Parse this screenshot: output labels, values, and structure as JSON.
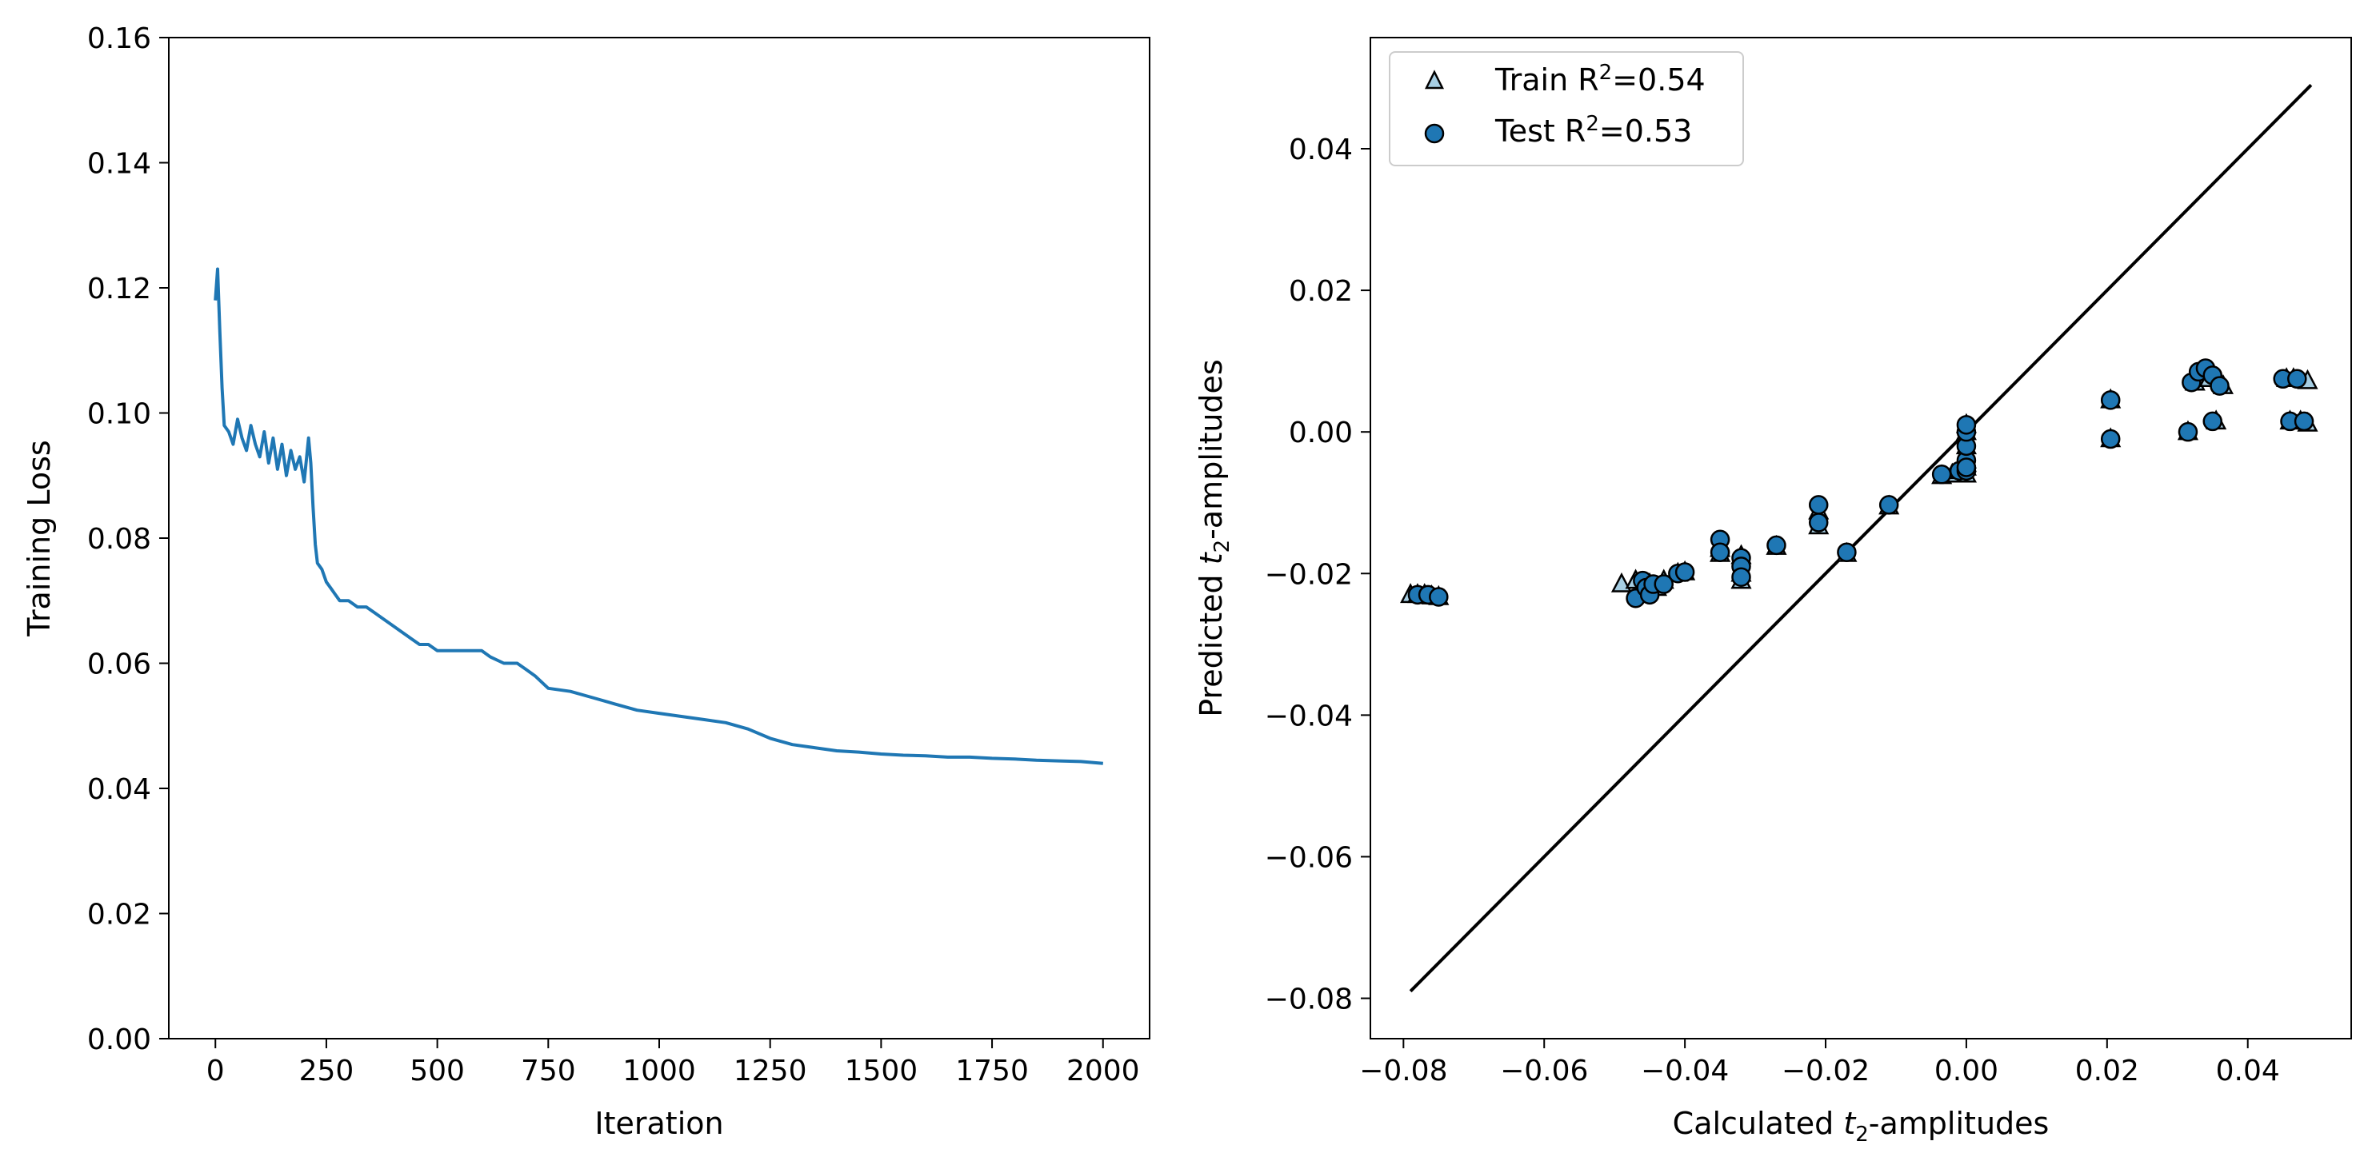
{
  "chart_data": [
    {
      "type": "line",
      "xlabel": "Iteration",
      "ylabel": "Training Loss",
      "xlim": [
        -105,
        2105
      ],
      "ylim": [
        0.0,
        0.16
      ],
      "xticks": [
        0,
        250,
        500,
        750,
        1000,
        1250,
        1500,
        1750,
        2000
      ],
      "yticks": [
        "0.00",
        "0.02",
        "0.04",
        "0.06",
        "0.08",
        "0.10",
        "0.12",
        "0.14",
        "0.16"
      ],
      "color": "#1f77b4",
      "series": [
        {
          "x": [
            0,
            5,
            10,
            15,
            20,
            30,
            40,
            50,
            60,
            70,
            80,
            90,
            100,
            110,
            120,
            130,
            140,
            150,
            160,
            170,
            180,
            190,
            200,
            210,
            215,
            220,
            225,
            230,
            240,
            250,
            260,
            270,
            280,
            300,
            320,
            340,
            360,
            380,
            400,
            420,
            440,
            460,
            480,
            500,
            520,
            540,
            560,
            580,
            600,
            620,
            650,
            680,
            700,
            720,
            750,
            800,
            850,
            900,
            950,
            1000,
            1050,
            1100,
            1150,
            1200,
            1250,
            1300,
            1350,
            1400,
            1450,
            1500,
            1550,
            1600,
            1650,
            1700,
            1750,
            1800,
            1850,
            1900,
            1950,
            2000
          ],
          "y": [
            0.118,
            0.123,
            0.113,
            0.104,
            0.098,
            0.097,
            0.095,
            0.099,
            0.096,
            0.094,
            0.098,
            0.095,
            0.093,
            0.097,
            0.092,
            0.096,
            0.091,
            0.095,
            0.09,
            0.094,
            0.091,
            0.093,
            0.089,
            0.096,
            0.092,
            0.085,
            0.079,
            0.076,
            0.075,
            0.073,
            0.072,
            0.071,
            0.07,
            0.07,
            0.069,
            0.069,
            0.068,
            0.067,
            0.066,
            0.065,
            0.064,
            0.063,
            0.063,
            0.062,
            0.062,
            0.062,
            0.062,
            0.062,
            0.062,
            0.061,
            0.06,
            0.06,
            0.059,
            0.058,
            0.056,
            0.0555,
            0.0545,
            0.0535,
            0.0525,
            0.052,
            0.0515,
            0.051,
            0.0505,
            0.0495,
            0.048,
            0.047,
            0.0465,
            0.046,
            0.0458,
            0.0455,
            0.0453,
            0.0452,
            0.045,
            0.045,
            0.0448,
            0.0447,
            0.0445,
            0.0444,
            0.0443,
            0.044
          ]
        }
      ]
    },
    {
      "type": "scatter",
      "xlabel": "Calculated t2-amplitudes",
      "ylabel": "Predicted t2-amplitudes",
      "xlim": [
        -0.0847,
        0.0547
      ],
      "ylim": [
        -0.0857,
        0.0557
      ],
      "xticks": [
        "−0.08",
        "−0.06",
        "−0.04",
        "−0.02",
        "0.00",
        "0.02",
        "0.04"
      ],
      "yticks": [
        "−0.08",
        "−0.06",
        "−0.04",
        "−0.02",
        "0.00",
        "0.02",
        "0.04"
      ],
      "legend_position": "top-left",
      "reference_line": {
        "x": [
          -0.079,
          0.049
        ],
        "y": [
          -0.079,
          0.049
        ],
        "color": "#000000"
      },
      "series": [
        {
          "name": "Train R²=0.54",
          "legend_prefix": "Train R",
          "legend_sup": "2",
          "legend_suffix": "=0.54",
          "marker": "triangle",
          "color": "#a6cee3",
          "x": [
            -0.079,
            -0.078,
            -0.077,
            -0.076,
            -0.075,
            -0.049,
            -0.047,
            -0.046,
            -0.045,
            -0.044,
            -0.043,
            -0.041,
            -0.04,
            -0.035,
            -0.035,
            -0.032,
            -0.032,
            -0.032,
            -0.027,
            -0.021,
            -0.021,
            -0.017,
            -0.011,
            -0.0035,
            -0.002,
            -0.001,
            0.0,
            0.0,
            0.0,
            0.0,
            0.0,
            0.0,
            0.0,
            0.0205,
            0.0205,
            0.0315,
            0.0325,
            0.0335,
            0.0345,
            0.0355,
            0.0365,
            0.0455,
            0.046,
            0.0465,
            0.0475,
            0.0485,
            0.0485
          ],
          "y": [
            -0.023,
            -0.023,
            -0.023,
            -0.0232,
            -0.0233,
            -0.0215,
            -0.021,
            -0.022,
            -0.0215,
            -0.022,
            -0.021,
            -0.02,
            -0.0198,
            -0.0172,
            -0.0165,
            -0.0175,
            -0.02,
            -0.021,
            -0.0162,
            -0.0112,
            -0.0133,
            -0.0172,
            -0.0105,
            -0.0062,
            -0.006,
            -0.0055,
            -0.006,
            -0.005,
            -0.004,
            -0.002,
            0.0,
            0.001,
            -0.0045,
            0.0045,
            -0.001,
            0.0,
            0.007,
            0.0085,
            0.0075,
            0.0015,
            0.0065,
            0.0075,
            0.0015,
            0.0075,
            0.0015,
            0.0072,
            0.0012
          ]
        },
        {
          "name": "Test R²=0.53",
          "legend_prefix": "Test R",
          "legend_sup": "2",
          "legend_suffix": "=0.53",
          "marker": "circle",
          "color": "#1f77b4",
          "x": [
            -0.078,
            -0.0765,
            -0.075,
            -0.047,
            -0.046,
            -0.0455,
            -0.045,
            -0.0445,
            -0.043,
            -0.041,
            -0.04,
            -0.035,
            -0.035,
            -0.032,
            -0.032,
            -0.032,
            -0.027,
            -0.021,
            -0.021,
            -0.017,
            -0.011,
            -0.0035,
            -0.001,
            0.0,
            0.0,
            0.0,
            0.0,
            0.0,
            0.0,
            0.0205,
            0.0205,
            0.0315,
            0.032,
            0.033,
            0.034,
            0.035,
            0.035,
            0.036,
            0.045,
            0.046,
            0.047,
            0.048
          ],
          "y": [
            -0.023,
            -0.023,
            -0.0233,
            -0.0235,
            -0.021,
            -0.022,
            -0.023,
            -0.0215,
            -0.0215,
            -0.02,
            -0.0198,
            -0.0152,
            -0.017,
            -0.0178,
            -0.019,
            -0.0205,
            -0.016,
            -0.0103,
            -0.0128,
            -0.017,
            -0.0103,
            -0.006,
            -0.0055,
            -0.004,
            -0.002,
            0.0,
            0.001,
            -0.0055,
            -0.005,
            0.0045,
            -0.001,
            0.0,
            0.007,
            0.0085,
            0.009,
            0.008,
            0.0015,
            0.0065,
            0.0075,
            0.0015,
            0.0075,
            0.0015
          ]
        }
      ]
    }
  ]
}
